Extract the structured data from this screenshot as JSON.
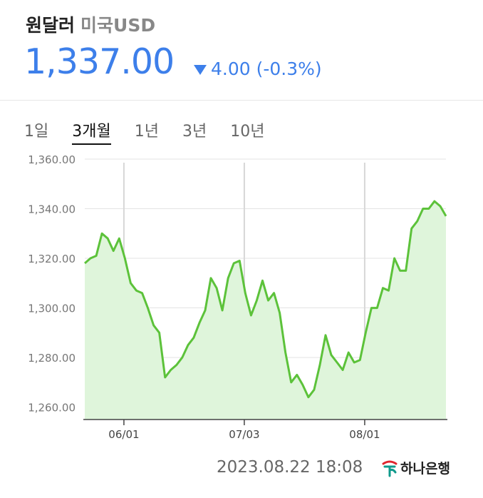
{
  "header": {
    "pair": "원달러",
    "sub": "미국USD",
    "price": "1,337.00",
    "change": "4.00 (-0.3%)",
    "direction": "down",
    "accent": "#3d7fea"
  },
  "tabs": [
    {
      "label": "1일",
      "active": false
    },
    {
      "label": "3개월",
      "active": true
    },
    {
      "label": "1년",
      "active": false
    },
    {
      "label": "3년",
      "active": false
    },
    {
      "label": "10년",
      "active": false
    }
  ],
  "footer": {
    "timestamp": "2023.08.22 18:08",
    "bank": "하나은행",
    "bank_icon": "hana-bank-logo-icon"
  },
  "chart_data": {
    "type": "area",
    "title": "",
    "xlabel": "",
    "ylabel": "",
    "ylim": [
      1255,
      1362
    ],
    "y_ticks": [
      1260,
      1280,
      1300,
      1320,
      1340,
      1360
    ],
    "y_tick_labels": [
      "1,260.00",
      "1,280.00",
      "1,300.00",
      "1,320.00",
      "1,340.00",
      "1,360.00"
    ],
    "x_range": [
      0,
      60
    ],
    "x_ticks": [
      6.5,
      26.5,
      46.5
    ],
    "x_tick_labels": [
      "06/01",
      "07/03",
      "08/01"
    ],
    "grid": true,
    "line_color": "#5cc23a",
    "fill_color": "#dff5db",
    "series": [
      {
        "values": [
          1318,
          1320,
          1321,
          1330,
          1328,
          1323,
          1328,
          1320,
          1310,
          1307,
          1306,
          1300,
          1293,
          1290,
          1272,
          1275,
          1277,
          1280,
          1285,
          1288,
          1294,
          1299,
          1312,
          1308,
          1299,
          1312,
          1318,
          1319,
          1306,
          1297,
          1303,
          1311,
          1303,
          1306,
          1298,
          1282,
          1270,
          1273,
          1269,
          1264,
          1267,
          1277,
          1289,
          1281,
          1278,
          1275,
          1282,
          1278,
          1279,
          1290,
          1300,
          1300,
          1308,
          1307,
          1320,
          1315,
          1315,
          1332,
          1335,
          1340,
          1340,
          1343,
          1341,
          1337
        ]
      }
    ]
  }
}
